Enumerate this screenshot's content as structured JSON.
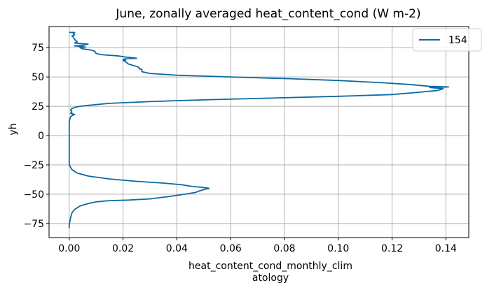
{
  "chart_data": {
    "type": "line",
    "title": "June, zonally averaged heat_content_cond (W m-2)",
    "xlabel_lines": [
      "heat_content_cond_monthly_clim",
      "atology"
    ],
    "ylabel": "yh",
    "xlim": [
      -0.0075,
      0.1485
    ],
    "ylim": [
      -87,
      93
    ],
    "xticks": [
      0.0,
      0.02,
      0.04,
      0.06,
      0.08,
      0.1,
      0.12,
      0.14
    ],
    "xtick_labels": [
      "0.00",
      "0.02",
      "0.04",
      "0.06",
      "0.08",
      "0.10",
      "0.12",
      "0.14"
    ],
    "yticks": [
      -75,
      -50,
      -25,
      0,
      25,
      50,
      75
    ],
    "ytick_labels": [
      "−75",
      "−50",
      "−25",
      "0",
      "25",
      "50",
      "75"
    ],
    "grid": true,
    "legend_position": "top-right",
    "series": [
      {
        "name": "154",
        "color": "#0a6aa1",
        "points": [
          [
            0.0,
            -79
          ],
          [
            0.0,
            -76
          ],
          [
            0.0005,
            -70
          ],
          [
            0.001,
            -66
          ],
          [
            0.002,
            -63
          ],
          [
            0.004,
            -60
          ],
          [
            0.007,
            -58
          ],
          [
            0.01,
            -56.5
          ],
          [
            0.015,
            -55.5
          ],
          [
            0.022,
            -55
          ],
          [
            0.03,
            -54
          ],
          [
            0.037,
            -52
          ],
          [
            0.043,
            -50
          ],
          [
            0.047,
            -48.5
          ],
          [
            0.048,
            -47.5
          ],
          [
            0.05,
            -46
          ],
          [
            0.052,
            -45
          ],
          [
            0.049,
            -44
          ],
          [
            0.046,
            -43.5
          ],
          [
            0.042,
            -42
          ],
          [
            0.035,
            -40.5
          ],
          [
            0.025,
            -39
          ],
          [
            0.015,
            -37
          ],
          [
            0.007,
            -34.5
          ],
          [
            0.003,
            -32
          ],
          [
            0.001,
            -29
          ],
          [
            0.0005,
            -27
          ],
          [
            0.0,
            -25
          ],
          [
            0.0,
            -15
          ],
          [
            0.0,
            -12
          ],
          [
            0.0,
            -5
          ],
          [
            0.0,
            5
          ],
          [
            0.0,
            12
          ],
          [
            0.0005,
            16
          ],
          [
            0.001,
            17
          ],
          [
            0.002,
            18
          ],
          [
            0.0005,
            19
          ],
          [
            0.001,
            20
          ],
          [
            0.0005,
            22
          ],
          [
            0.001,
            23
          ],
          [
            0.002,
            24
          ],
          [
            0.004,
            25
          ],
          [
            0.008,
            26
          ],
          [
            0.015,
            27.5
          ],
          [
            0.03,
            29
          ],
          [
            0.05,
            30.5
          ],
          [
            0.075,
            32
          ],
          [
            0.1,
            33.5
          ],
          [
            0.12,
            35
          ],
          [
            0.13,
            37
          ],
          [
            0.137,
            38.5
          ],
          [
            0.139,
            40
          ],
          [
            0.134,
            41
          ],
          [
            0.141,
            41.5
          ],
          [
            0.134,
            42
          ],
          [
            0.127,
            43.5
          ],
          [
            0.117,
            45
          ],
          [
            0.1,
            47
          ],
          [
            0.082,
            48.5
          ],
          [
            0.06,
            50
          ],
          [
            0.04,
            51.5
          ],
          [
            0.03,
            53
          ],
          [
            0.027,
            54.5
          ],
          [
            0.027,
            56.5
          ],
          [
            0.026,
            57
          ],
          [
            0.026,
            58
          ],
          [
            0.025,
            59
          ],
          [
            0.022,
            61
          ],
          [
            0.021,
            63
          ],
          [
            0.02,
            64
          ],
          [
            0.021,
            64.5
          ],
          [
            0.02,
            65
          ],
          [
            0.021,
            65.5
          ],
          [
            0.025,
            66
          ],
          [
            0.021,
            67
          ],
          [
            0.018,
            68
          ],
          [
            0.012,
            69
          ],
          [
            0.01,
            70
          ],
          [
            0.0095,
            72
          ],
          [
            0.008,
            73
          ],
          [
            0.005,
            74
          ],
          [
            0.004,
            75
          ],
          [
            0.006,
            75.5
          ],
          [
            0.0045,
            76
          ],
          [
            0.002,
            76.5
          ],
          [
            0.005,
            77
          ],
          [
            0.007,
            78
          ],
          [
            0.004,
            78.5
          ],
          [
            0.002,
            79
          ],
          [
            0.003,
            80
          ],
          [
            0.002,
            82
          ],
          [
            0.0015,
            84
          ],
          [
            0.001,
            85
          ],
          [
            0.002,
            86
          ],
          [
            0.0015,
            87
          ],
          [
            0.002,
            88
          ],
          [
            0.0,
            88
          ]
        ]
      }
    ]
  }
}
